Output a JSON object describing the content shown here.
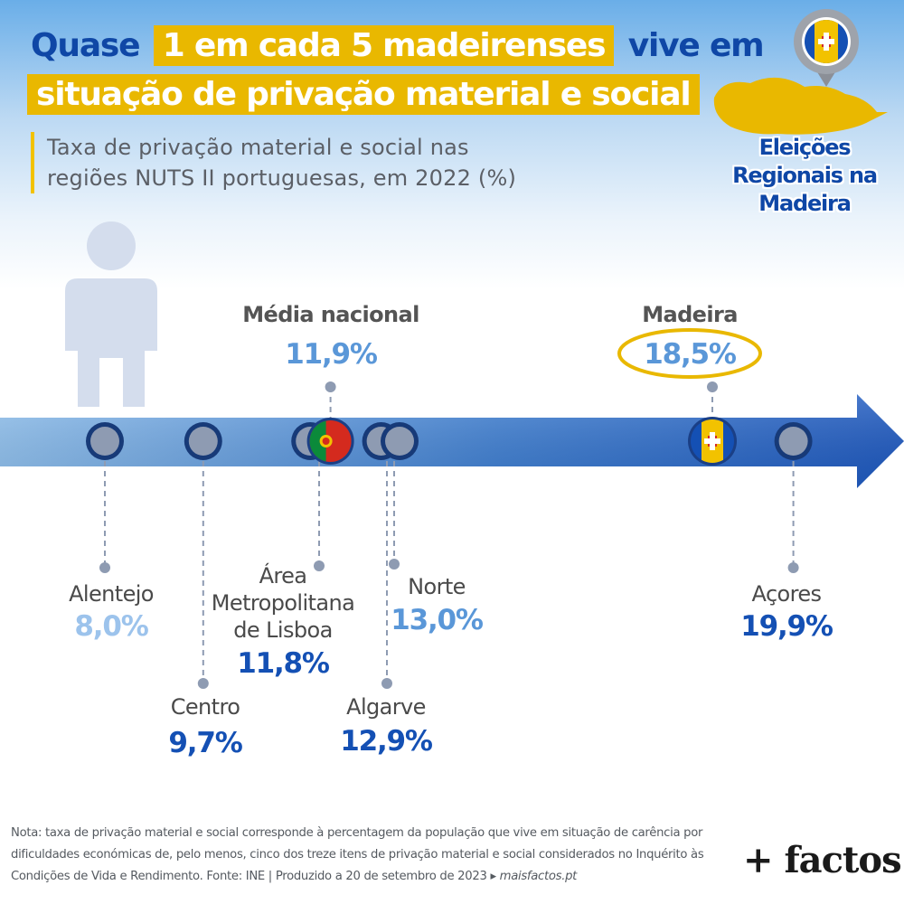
{
  "headline": {
    "line1_pre": "Quase",
    "line1_highlight": "1 em cada 5 madeirenses",
    "line1_post": "vive em",
    "line2_highlight": "situação de privação material e social"
  },
  "subtitle": "Taxa de privação material e social nas regiões NUTS II portuguesas, em 2022 (%)",
  "badge": {
    "line1": "Eleições",
    "line2": "Regionais na",
    "line3": "Madeira",
    "icon": "madeira-map-pin-icon"
  },
  "colors": {
    "accent_yellow": "#e9b800",
    "title_blue": "#0f47a6",
    "arrow_blue": "#2160c4",
    "light_blue": "#9cc3ec",
    "mid_blue": "#5a97d8",
    "dark_blue": "#1450b4",
    "marker_grey": "#8e9bb2"
  },
  "chart_data": {
    "type": "scatter",
    "title": "Taxa de privação material e social nas regiões NUTS II portuguesas, em 2022 (%)",
    "xlim": [
      6.5,
      21.5
    ],
    "unit": "%",
    "points": [
      {
        "name": "Alentejo",
        "value": 8.0,
        "label": "8,0%",
        "side": "below"
      },
      {
        "name": "Centro",
        "value": 9.7,
        "label": "9,7%",
        "side": "below"
      },
      {
        "name": "Área Metropolitana de Lisboa",
        "value": 11.8,
        "label": "11,8%",
        "side": "below"
      },
      {
        "name": "Média nacional",
        "value": 11.9,
        "label": "11,9%",
        "side": "above"
      },
      {
        "name": "Algarve",
        "value": 12.9,
        "label": "12,9%",
        "side": "below"
      },
      {
        "name": "Norte",
        "value": 13.0,
        "label": "13,0%",
        "side": "below"
      },
      {
        "name": "Madeira",
        "value": 18.5,
        "label": "18,5%",
        "side": "above"
      },
      {
        "name": "Açores",
        "value": 19.9,
        "label": "19,9%",
        "side": "below"
      }
    ],
    "label_lines": {
      "Área Metropolitana de Lisboa": [
        "Área",
        "Metropolitana",
        "de Lisboa"
      ]
    }
  },
  "footer": {
    "note": "Nota: taxa de privação material e social corresponde à percentagem da população que vive em situação de carência por dificuldades económicas de, pelo menos, cinco dos treze itens de privação material e social considerados no Inquérito às Condições de Vida e Rendimento. Fonte: INE | Produzido a 20 de setembro de 2023 ▸",
    "site": "maisfactos.pt",
    "brand": "+ factos"
  }
}
